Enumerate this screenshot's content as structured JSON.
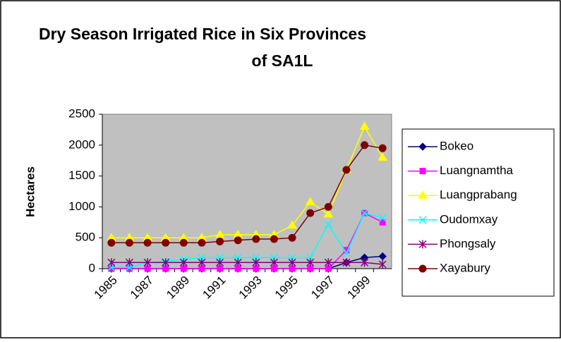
{
  "chart_data": {
    "type": "line",
    "title": "Dry Season Irrigated Rice in Six Provinces of SA1L",
    "y_label": "Hectares",
    "categories": [
      "1985",
      null,
      "1987",
      null,
      "1989",
      null,
      "1991",
      null,
      "1993",
      null,
      "1995",
      null,
      "1997",
      null,
      "1999",
      null
    ],
    "ylim": [
      0,
      2500
    ],
    "yticks": [
      0,
      500,
      1000,
      1500,
      2000,
      2500
    ],
    "grid": false,
    "legend": "right",
    "series": [
      {
        "name": "Bokeo",
        "color": "#000080",
        "marker": "diamond",
        "values": [
          0,
          0,
          0,
          0,
          0,
          0,
          0,
          0,
          0,
          0,
          0,
          0,
          0,
          100,
          180,
          200
        ]
      },
      {
        "name": "Luangnamtha",
        "color": "#ff00ff",
        "marker": "square",
        "values": [
          0,
          0,
          0,
          0,
          0,
          0,
          0,
          0,
          0,
          0,
          0,
          0,
          0,
          300,
          900,
          750
        ]
      },
      {
        "name": "Luangprabang",
        "color": "#ffff00",
        "marker": "triangle",
        "values": [
          500,
          500,
          500,
          500,
          500,
          500,
          550,
          550,
          550,
          550,
          700,
          1080,
          880,
          1600,
          2300,
          1800
        ]
      },
      {
        "name": "Oudomxay",
        "color": "#00ffff",
        "marker": "x",
        "values": [
          20,
          20,
          100,
          120,
          150,
          180,
          180,
          180,
          180,
          180,
          180,
          180,
          720,
          250,
          900,
          820
        ]
      },
      {
        "name": "Phongsaly",
        "color": "#800080",
        "marker": "star",
        "values": [
          100,
          100,
          100,
          100,
          100,
          100,
          100,
          100,
          100,
          100,
          100,
          100,
          100,
          100,
          100,
          70
        ]
      },
      {
        "name": "Xayabury",
        "color": "#800000",
        "marker": "circle",
        "values": [
          420,
          420,
          420,
          420,
          420,
          420,
          440,
          460,
          480,
          480,
          500,
          900,
          1000,
          1600,
          2000,
          1950
        ]
      }
    ]
  }
}
